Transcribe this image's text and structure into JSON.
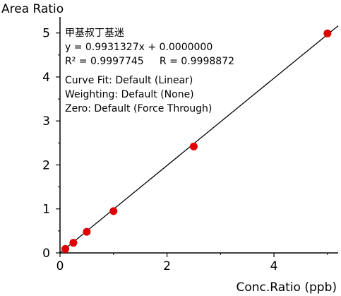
{
  "chart_data": {
    "type": "scatter",
    "xlabel": "Conc.Ratio (ppb)",
    "ylabel": "Area Ratio",
    "xlim": [
      0,
      5.2
    ],
    "ylim": [
      0,
      5.3
    ],
    "x_ticks": [
      0,
      2,
      4
    ],
    "y_ticks": [
      0,
      1,
      2,
      3,
      4,
      5
    ],
    "x_tick_labels": [
      "0",
      "2",
      "4"
    ],
    "y_tick_labels": [
      "0",
      "1",
      "2",
      "3",
      "4",
      "5"
    ],
    "grid": false,
    "points": {
      "x": [
        0.1,
        0.25,
        0.5,
        1.0,
        2.5,
        5.0
      ],
      "y": [
        0.09,
        0.23,
        0.48,
        0.95,
        2.42,
        4.99
      ],
      "color": "#e00000"
    },
    "fit_line": {
      "slope": 0.9931327,
      "intercept": 0.0,
      "color": "#000000"
    },
    "annotations": {
      "compound": "甲基叔丁基迷",
      "equation": "y = 0.9931327x + 0.0000000",
      "r_values": "R² = 0.9997745     R = 0.9998872",
      "curve_fit": "Curve Fit: Default (Linear)",
      "weighting": "Weighting: Default (None)",
      "zero": "Zero: Default (Force Through)"
    }
  }
}
